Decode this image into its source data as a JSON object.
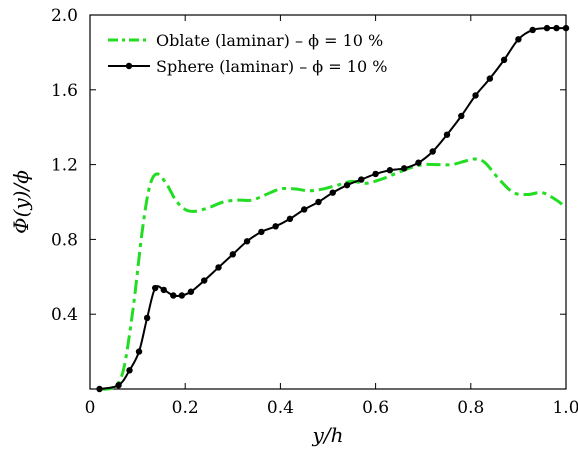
{
  "chart_data": {
    "type": "line",
    "xlabel": "y/h",
    "ylabel": "Φ(y)/ϕ",
    "xlim": [
      0.0,
      1.0
    ],
    "ylim": [
      0.0,
      2.0
    ],
    "xticks": [
      0,
      0.2,
      0.4,
      0.6,
      0.8,
      1.0
    ],
    "xtick_labels": [
      "0",
      "0.2",
      "0.4",
      "0.6",
      "0.8",
      "1.0"
    ],
    "yticks": [
      0.4,
      0.8,
      1.2,
      1.6,
      2.0
    ],
    "ytick_labels": [
      "0.4",
      "0.8",
      "1.2",
      "1.6",
      "2.0"
    ],
    "grid": false,
    "legend_position": "top-left",
    "series": [
      {
        "name": "Oblate (laminar) – ϕ = 10 %",
        "color": "#22dd22",
        "style": "dash-dot",
        "markers": false,
        "x": [
          0.02,
          0.05,
          0.07,
          0.09,
          0.11,
          0.125,
          0.14,
          0.16,
          0.18,
          0.2,
          0.22,
          0.25,
          0.28,
          0.31,
          0.34,
          0.37,
          0.4,
          0.43,
          0.46,
          0.49,
          0.52,
          0.55,
          0.58,
          0.61,
          0.64,
          0.67,
          0.7,
          0.73,
          0.76,
          0.79,
          0.81,
          0.83,
          0.86,
          0.89,
          0.92,
          0.95,
          0.98,
          1.0
        ],
        "y": [
          0.0,
          0.01,
          0.1,
          0.42,
          0.85,
          1.08,
          1.15,
          1.1,
          1.01,
          0.96,
          0.95,
          0.97,
          1.0,
          1.01,
          1.01,
          1.04,
          1.07,
          1.07,
          1.06,
          1.07,
          1.09,
          1.11,
          1.1,
          1.12,
          1.15,
          1.18,
          1.2,
          1.2,
          1.2,
          1.22,
          1.23,
          1.21,
          1.12,
          1.05,
          1.04,
          1.05,
          1.01,
          0.97
        ]
      },
      {
        "name": "Sphere (laminar) – ϕ = 10 %",
        "color": "#000000",
        "style": "solid",
        "markers": true,
        "x": [
          0.02,
          0.06,
          0.083,
          0.103,
          0.12,
          0.137,
          0.155,
          0.175,
          0.193,
          0.212,
          0.24,
          0.27,
          0.3,
          0.33,
          0.36,
          0.39,
          0.42,
          0.45,
          0.48,
          0.51,
          0.54,
          0.57,
          0.6,
          0.63,
          0.66,
          0.69,
          0.72,
          0.75,
          0.78,
          0.81,
          0.84,
          0.87,
          0.9,
          0.93,
          0.96,
          0.98,
          1.0
        ],
        "y": [
          0.0,
          0.02,
          0.1,
          0.2,
          0.38,
          0.54,
          0.53,
          0.5,
          0.5,
          0.52,
          0.58,
          0.65,
          0.72,
          0.79,
          0.84,
          0.87,
          0.91,
          0.96,
          1.0,
          1.05,
          1.09,
          1.12,
          1.15,
          1.17,
          1.18,
          1.21,
          1.27,
          1.36,
          1.46,
          1.57,
          1.66,
          1.76,
          1.87,
          1.92,
          1.93,
          1.93,
          1.93
        ]
      }
    ]
  }
}
